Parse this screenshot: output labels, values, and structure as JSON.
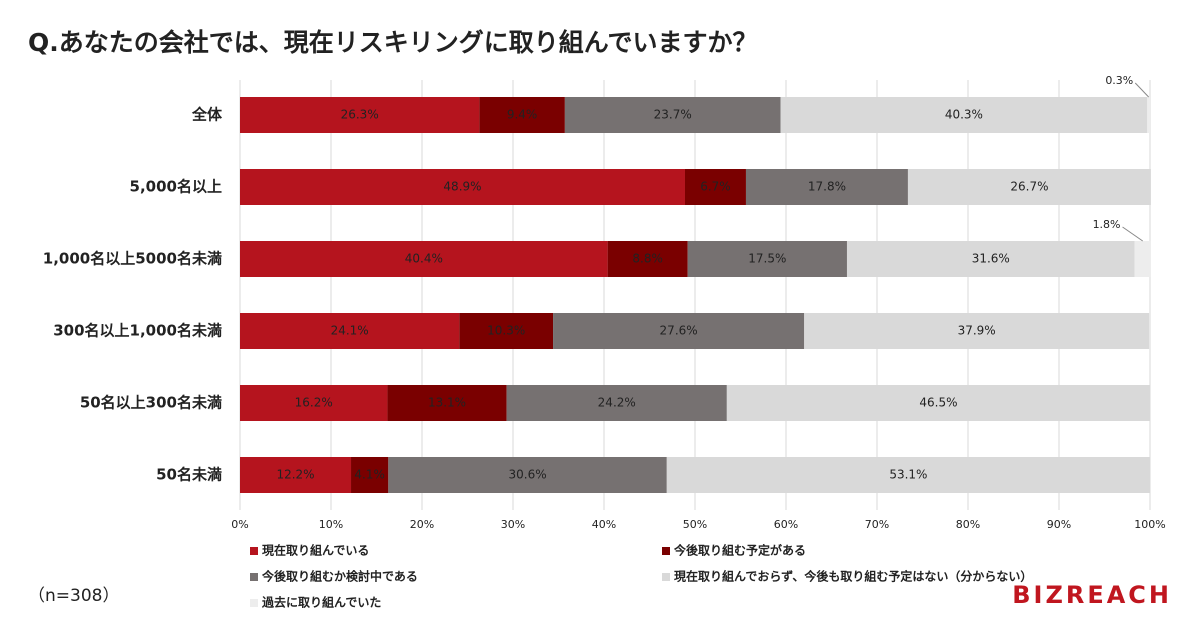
{
  "chart_data": {
    "type": "stacked-bar-horizontal",
    "title": "Q.あなたの会社では、現在リスキリングに取り組んでいますか？",
    "categories": [
      "全体",
      "5,000名以上",
      "1,000名以上5000名未満",
      "300名以上1,000名未満",
      "50名以上300名未満",
      "50名未満"
    ],
    "series": [
      {
        "name": "現在取り組んでいる",
        "color": "#b5141e",
        "values": [
          26.3,
          48.9,
          40.4,
          24.1,
          16.2,
          12.2
        ],
        "value_labels": [
          "26.3%",
          "48.9%",
          "40.4%",
          "24.1%",
          "16.2%",
          "12.2%"
        ]
      },
      {
        "name": "今後取り組む予定がある",
        "color": "#7a0000",
        "values": [
          9.4,
          6.7,
          8.8,
          10.3,
          13.1,
          4.1
        ],
        "value_labels": [
          "9.4%",
          "6.7%",
          "8.8%",
          "10.3%",
          "13.1%",
          "4.1%"
        ]
      },
      {
        "name": "今後取り組むか検討中である",
        "color": "#767171",
        "values": [
          23.7,
          17.8,
          17.5,
          27.6,
          24.2,
          30.6
        ],
        "value_labels": [
          "23.7%",
          "17.8%",
          "17.5%",
          "27.6%",
          "24.2%",
          "30.6%"
        ]
      },
      {
        "name": "現在取り組んでおらず、今後も取り組む予定はない（分からない）",
        "color": "#d9d9d9",
        "values": [
          40.3,
          26.7,
          31.6,
          37.9,
          46.5,
          53.1
        ],
        "value_labels": [
          "40.3%",
          "26.7%",
          "31.6%",
          "37.9%",
          "46.5%",
          "53.1%"
        ]
      },
      {
        "name": "過去に取り組んでいた",
        "color": "#ededed",
        "values": [
          0.3,
          null,
          1.8,
          null,
          null,
          null
        ],
        "value_labels": [
          "0.3%",
          null,
          "1.8%",
          null,
          null,
          null
        ]
      }
    ],
    "xlim": [
      0,
      100
    ],
    "xticks": [
      {
        "value": 0,
        "label": "0%"
      },
      {
        "value": 10,
        "label": "10%"
      },
      {
        "value": 20,
        "label": "20%"
      },
      {
        "value": 30,
        "label": "30%"
      },
      {
        "value": 40,
        "label": "40%"
      },
      {
        "value": 50,
        "label": "50%"
      },
      {
        "value": 60,
        "label": "60%"
      },
      {
        "value": 70,
        "label": "70%"
      },
      {
        "value": 80,
        "label": "80%"
      },
      {
        "value": 90,
        "label": "90%"
      },
      {
        "value": 100,
        "label": "100%"
      }
    ],
    "grid": true,
    "note": "（n=308）",
    "logo": "BIZREACH"
  }
}
